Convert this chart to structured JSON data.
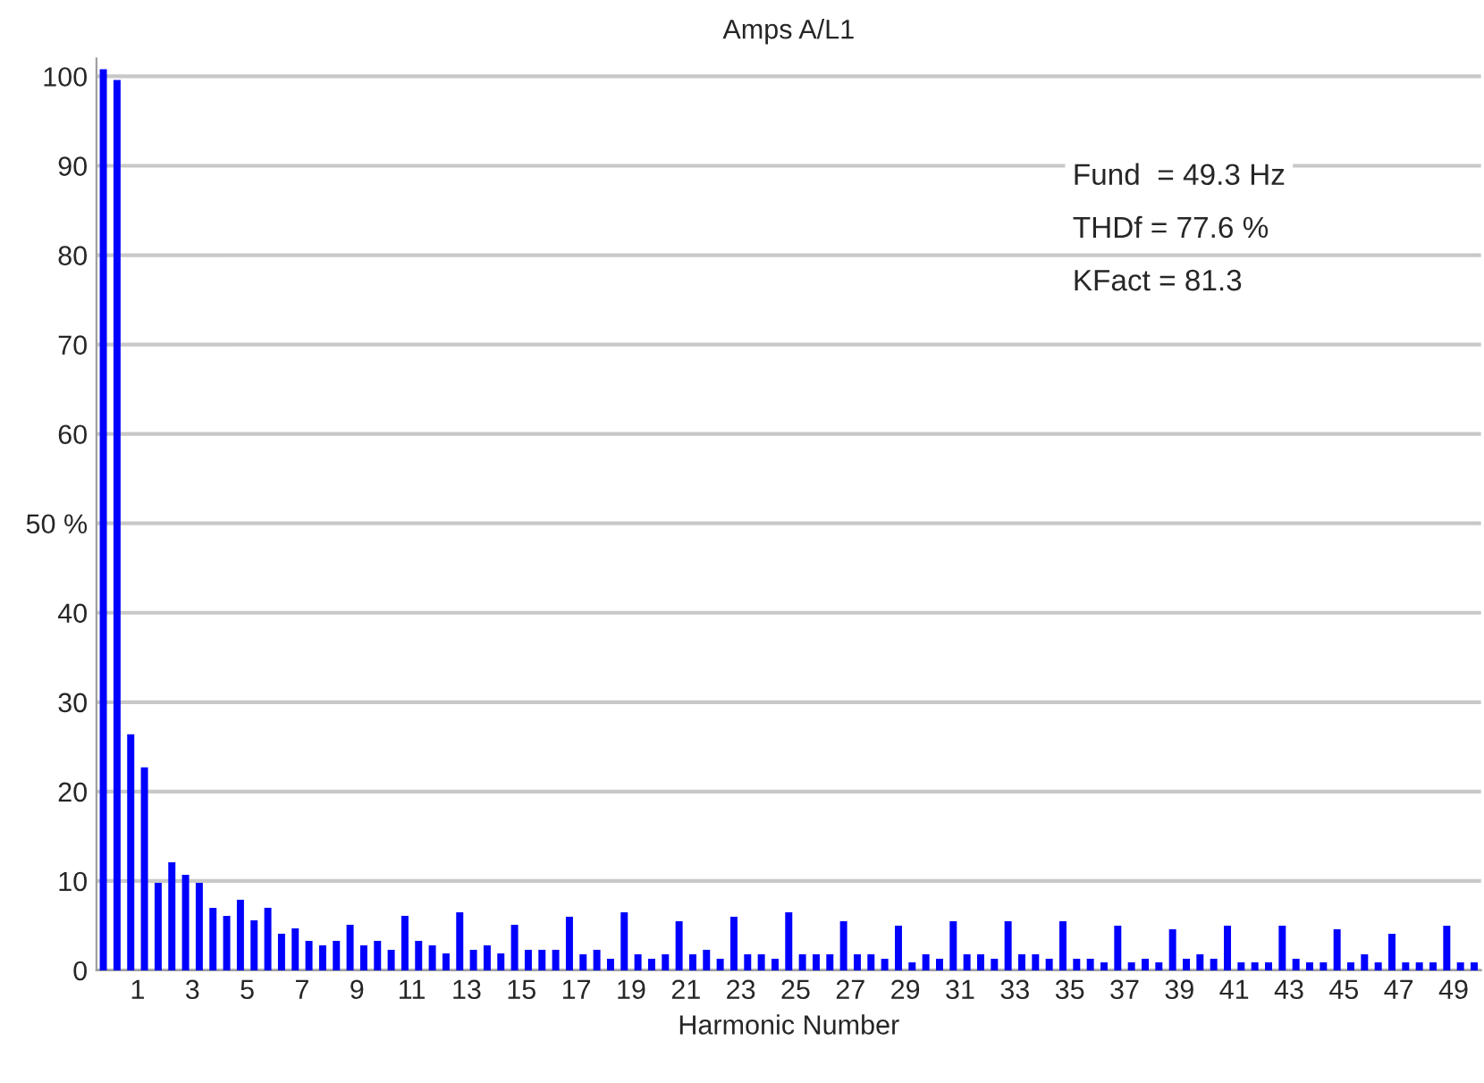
{
  "chart_data": {
    "type": "bar",
    "title": "Amps A/L1",
    "xlabel": "Harmonic Number",
    "annotations": [
      "Fund  = 49.3 Hz",
      "THDf = 77.6 %",
      "KFact = 81.3"
    ],
    "x": [
      -0.25,
      0.25,
      0.75,
      1.25,
      1.75,
      2.25,
      2.75,
      3.25,
      3.75,
      4.25,
      4.75,
      5.25,
      5.75,
      6.25,
      6.75,
      7.25,
      7.75,
      8.25,
      8.75,
      9.25,
      9.75,
      10.25,
      10.75,
      11.25,
      11.75,
      12.25,
      12.75,
      13.25,
      13.75,
      14.25,
      14.75,
      15.25,
      15.75,
      16.25,
      16.75,
      17.25,
      17.75,
      18.25,
      18.75,
      19.25,
      19.75,
      20.25,
      20.75,
      21.25,
      21.75,
      22.25,
      22.75,
      23.25,
      23.75,
      24.25,
      24.75,
      25.25,
      25.75,
      26.25,
      26.75,
      27.25,
      27.75,
      28.25,
      28.75,
      29.25,
      29.75,
      30.25,
      30.75,
      31.25,
      31.75,
      32.25,
      32.75,
      33.25,
      33.75,
      34.25,
      34.75,
      35.25,
      35.75,
      36.25,
      36.75,
      37.25,
      37.75,
      38.25,
      38.75,
      39.25,
      39.75,
      40.25,
      40.75,
      41.25,
      41.75,
      42.25,
      42.75,
      43.25,
      43.75,
      44.25,
      44.75,
      45.25,
      45.75,
      46.25,
      46.75,
      47.25,
      47.75,
      48.25,
      48.75,
      49.25,
      49.75
    ],
    "values": [
      100.8,
      99.6,
      26.4,
      22.7,
      9.8,
      12.1,
      10.7,
      9.8,
      7.0,
      6.1,
      7.9,
      5.6,
      7.0,
      4.1,
      4.7,
      3.3,
      2.8,
      3.3,
      5.1,
      2.8,
      3.3,
      2.3,
      6.1,
      3.3,
      2.8,
      1.9,
      6.5,
      2.3,
      2.8,
      1.9,
      5.1,
      2.3,
      2.3,
      2.3,
      6.0,
      1.8,
      2.3,
      1.3,
      6.5,
      1.8,
      1.3,
      1.8,
      5.5,
      1.8,
      2.3,
      1.3,
      6.0,
      1.8,
      1.8,
      1.3,
      6.5,
      1.8,
      1.8,
      1.8,
      5.5,
      1.8,
      1.8,
      1.3,
      5.0,
      0.9,
      1.8,
      1.3,
      5.5,
      1.8,
      1.8,
      1.3,
      5.5,
      1.8,
      1.8,
      1.3,
      5.5,
      1.3,
      1.3,
      0.9,
      5.0,
      0.9,
      1.3,
      0.9,
      4.6,
      1.3,
      1.8,
      1.3,
      5.0,
      0.9,
      0.9,
      0.9,
      5.0,
      1.3,
      0.9,
      0.9,
      4.6,
      0.9,
      1.8,
      0.9,
      4.1,
      0.9,
      0.9,
      0.9,
      5.0,
      0.9,
      0.9
    ],
    "color": "#0000ff",
    "xlim": [
      -0.5,
      50
    ],
    "xticks": [
      1,
      3,
      5,
      7,
      9,
      11,
      13,
      15,
      17,
      19,
      21,
      23,
      25,
      27,
      29,
      31,
      33,
      35,
      37,
      39,
      41,
      43,
      45,
      47,
      49
    ],
    "ylim": [
      0,
      102
    ],
    "yticks": [
      0,
      10,
      20,
      30,
      40,
      {
        "value": 50,
        "label": "50 %"
      },
      60,
      70,
      80,
      90,
      100
    ],
    "grid": "y"
  }
}
